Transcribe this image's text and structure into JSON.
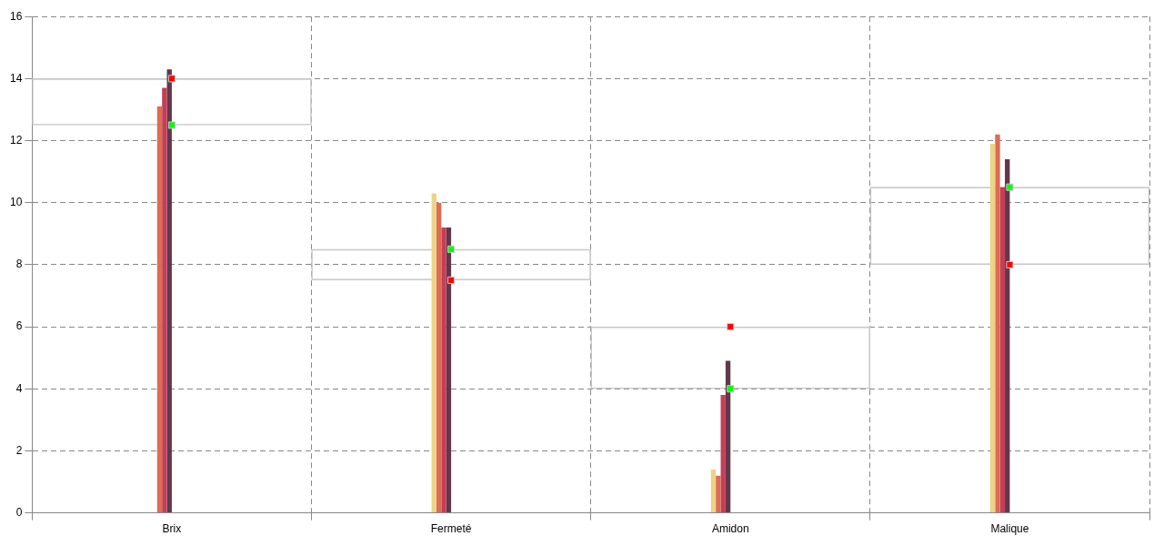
{
  "chart_data": {
    "type": "bar",
    "categories": [
      "Brix",
      "Fermeté",
      "Amidon",
      "Malique"
    ],
    "series": [
      {
        "color": "#edd385",
        "values": [
          0,
          10.3,
          1.4,
          11.9
        ]
      },
      {
        "color": "#dd6b55",
        "values": [
          13.1,
          10.0,
          1.2,
          12.2
        ]
      },
      {
        "color": "#c43e57",
        "values": [
          13.7,
          9.2,
          3.8,
          10.5
        ]
      },
      {
        "color": "#62374b",
        "values": [
          14.3,
          9.2,
          4.9,
          11.4
        ]
      },
      {
        "type": "bar",
        "color": "#c8c8c8",
        "base": [
          12.5,
          7.5,
          4,
          8
        ],
        "values": [
          1.5,
          1,
          2,
          2.5
        ]
      },
      {
        "type": "scatter",
        "marker": "square",
        "color": "#00ff00",
        "x": [
          "Brix",
          "Fermeté",
          "Amidon",
          "Malique"
        ],
        "values": [
          12.5,
          8.5,
          4,
          10.5
        ]
      },
      {
        "type": "scatter",
        "marker": "square",
        "color": "#ff0000",
        "x": [
          "Brix",
          "Fermeté",
          "Amidon",
          "Malique"
        ],
        "values": [
          14,
          7.5,
          6,
          8
        ]
      }
    ],
    "ylim": [
      0,
      16
    ],
    "yticks": [
      0,
      2,
      4,
      6,
      8,
      10,
      12,
      14,
      16
    ],
    "grid": true,
    "legend": false
  }
}
